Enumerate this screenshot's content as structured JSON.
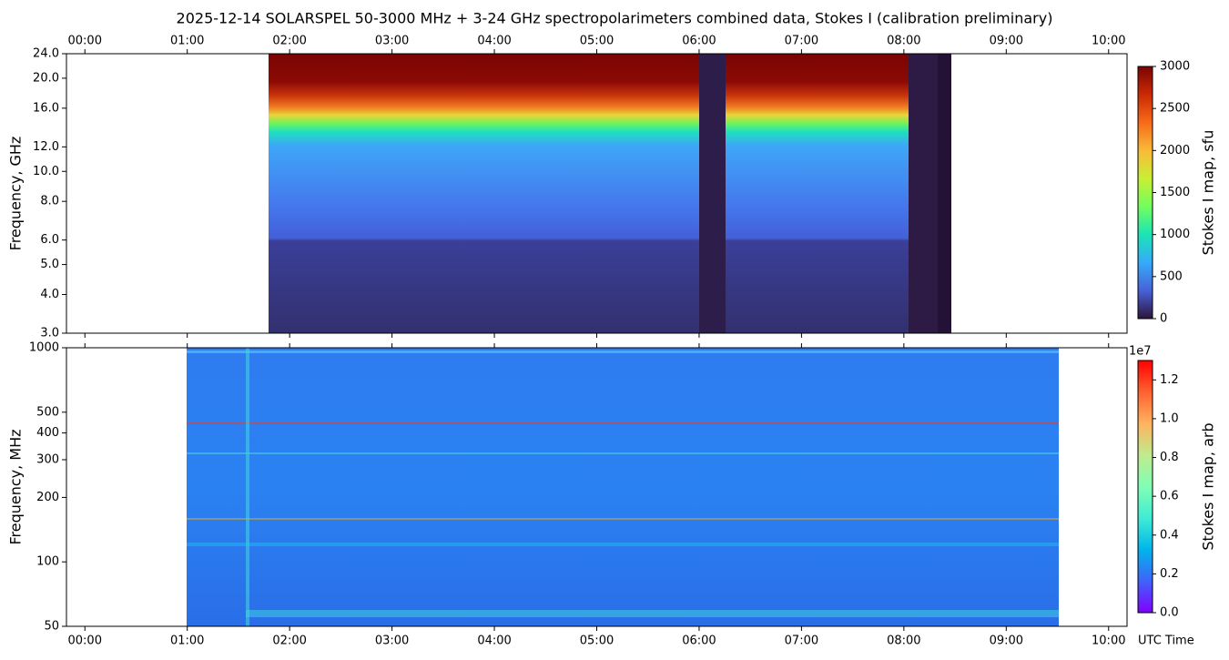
{
  "chart_data": [
    {
      "type": "heatmap",
      "title": "2025-12-14  SOLARSPEL  50-3000 MHz  +  3-24 GHz  spectropolarimeters combined data,  Stokes I  (calibration preliminary)",
      "ylabel": "Frequency, GHz",
      "xlim": [
        -0.18,
        10.18
      ],
      "xticks": [
        {
          "value": 0,
          "label": "00:00"
        },
        {
          "value": 1,
          "label": "01:00"
        },
        {
          "value": 2,
          "label": "02:00"
        },
        {
          "value": 3,
          "label": "03:00"
        },
        {
          "value": 4,
          "label": "04:00"
        },
        {
          "value": 5,
          "label": "05:00"
        },
        {
          "value": 6,
          "label": "06:00"
        },
        {
          "value": 7,
          "label": "07:00"
        },
        {
          "value": 8,
          "label": "08:00"
        },
        {
          "value": 9,
          "label": "09:00"
        },
        {
          "value": 10,
          "label": "10:00"
        }
      ],
      "xtick_side": "top",
      "ylim": [
        3,
        24
      ],
      "yscale": "log",
      "yticks": [
        {
          "value": 3,
          "label": "3.0"
        },
        {
          "value": 4,
          "label": "4.0"
        },
        {
          "value": 5,
          "label": "5.0"
        },
        {
          "value": 6,
          "label": "6.0"
        },
        {
          "value": 8,
          "label": "8.0"
        },
        {
          "value": 10,
          "label": "10.0"
        },
        {
          "value": 12,
          "label": "12.0"
        },
        {
          "value": 16,
          "label": "16.0"
        },
        {
          "value": 20,
          "label": "20.0"
        },
        {
          "value": 24,
          "label": "24.0"
        }
      ],
      "colorbar": {
        "label": "Stokes I map, sfu",
        "colormap": "turbo",
        "clim": [
          0,
          3000
        ],
        "ticks": [
          0,
          500,
          1000,
          1500,
          2000,
          2500,
          3000
        ]
      }
    },
    {
      "type": "heatmap",
      "ylabel": "Frequency, MHz",
      "xlabel": "UTC Time",
      "xlim": [
        -0.18,
        10.18
      ],
      "xticks": [
        {
          "value": 0,
          "label": "00:00"
        },
        {
          "value": 1,
          "label": "01:00"
        },
        {
          "value": 2,
          "label": "02:00"
        },
        {
          "value": 3,
          "label": "03:00"
        },
        {
          "value": 4,
          "label": "04:00"
        },
        {
          "value": 5,
          "label": "05:00"
        },
        {
          "value": 6,
          "label": "06:00"
        },
        {
          "value": 7,
          "label": "07:00"
        },
        {
          "value": 8,
          "label": "08:00"
        },
        {
          "value": 9,
          "label": "09:00"
        },
        {
          "value": 10,
          "label": "10:00"
        }
      ],
      "xtick_side": "bottom",
      "ylim": [
        50,
        1000
      ],
      "yscale": "log",
      "yticks": [
        50,
        100,
        200,
        300,
        400,
        500,
        1000
      ],
      "colorbar": {
        "label": "Stokes I map, arb",
        "colormap": "rainbow",
        "clim": [
          0,
          13000000
        ],
        "offset_label": "1e7",
        "ticks": [
          {
            "value": 0,
            "label": "0.0"
          },
          {
            "value": 2000000,
            "label": "0.2"
          },
          {
            "value": 4000000,
            "label": "0.4"
          },
          {
            "value": 6000000,
            "label": "0.6"
          },
          {
            "value": 8000000,
            "label": "0.8"
          },
          {
            "value": 10000000,
            "label": "1.0"
          },
          {
            "value": 12000000,
            "label": "1.2"
          }
        ]
      }
    }
  ]
}
